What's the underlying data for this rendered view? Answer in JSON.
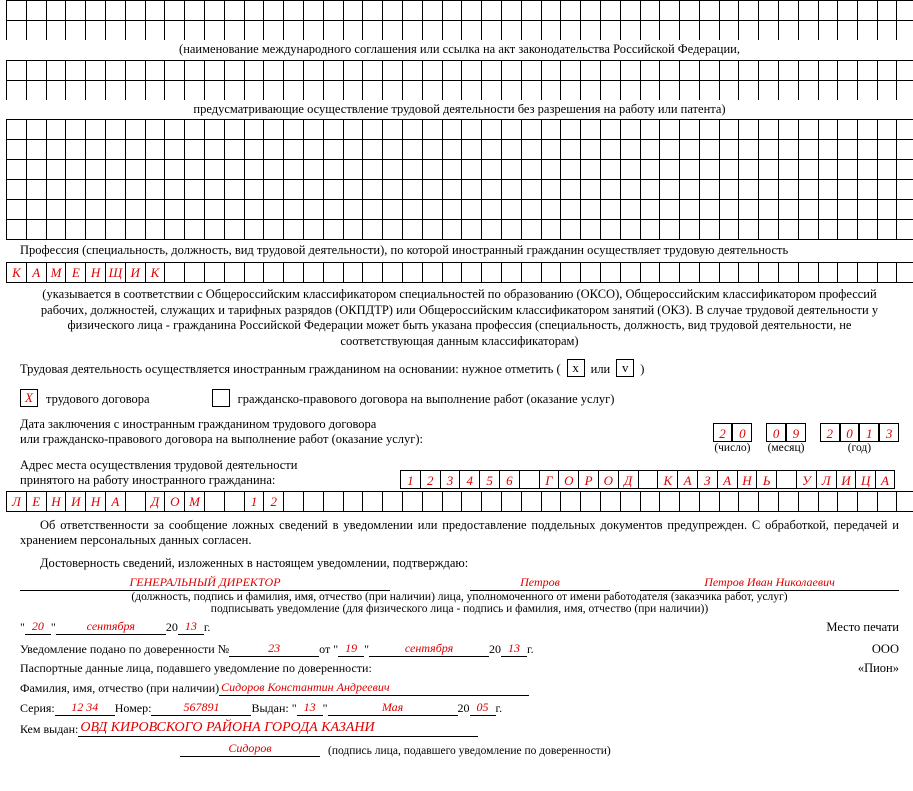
{
  "cell_count": 45,
  "note1": "(наименование международного соглашения или ссылка на акт законодательства Российской Федерации,",
  "note2": "предусматривающие осуществление трудовой деятельности без разрешения на работу или патента)",
  "profession_label": "Профессия (специальность, должность, вид трудовой деятельности), по которой иностранный гражданин осуществляет трудовую деятельность",
  "profession_chars": [
    "К",
    "А",
    "М",
    "Е",
    "Н",
    "Щ",
    "И",
    "К"
  ],
  "profession_note": "(указывается в соответствии с Общероссийским классификатором специальностей по образованию (ОКСО), Общероссийским классификатором профессий рабочих, должностей, служащих и тарифных разрядов (ОКПДТР) или Общероссийским классификатором занятий (ОКЗ). В случае трудовой деятельности у физического лица - гражданина Российской Федерации может быть указана профессия (специальность, должность, вид трудовой деятельности, не соответствующая данным классификаторам)",
  "basis_line": {
    "l1": "Трудовая деятельность осуществляется иностранным гражданином на основании: нужное отметить (",
    "x": "x",
    "ili": " или ",
    "v": "v",
    "l2": " )"
  },
  "contract_line": {
    "trud_mark": "Х",
    "trud_label": "трудового договора",
    "gpd_label": "гражданско-правового договора на выполнение работ (оказание услуг)"
  },
  "date_label1": "Дата заключения с иностранным гражданином трудового договора",
  "date_label2": "или гражданско-правового договора на выполнение работ (оказание услуг):",
  "date": {
    "dd": [
      "2",
      "0"
    ],
    "mm": [
      "0",
      "9"
    ],
    "yy": [
      "2",
      "0",
      "1",
      "3"
    ],
    "c1": "(число)",
    "c2": "(месяц)",
    "c3": "(год)"
  },
  "addr_label1": "Адрес места осуществления трудовой деятельности",
  "addr_label2": "принятого на работу иностранного гражданина:",
  "addr_row1": [
    "1",
    "2",
    "3",
    "4",
    "5",
    "6",
    "",
    "Г",
    "О",
    "Р",
    "О",
    "Д",
    "",
    "К",
    "А",
    "З",
    "А",
    "Н",
    "Ь",
    "",
    "У",
    "Л",
    "И",
    "Ц",
    "А"
  ],
  "addr_row2": [
    "Л",
    "Е",
    "Н",
    "И",
    "Н",
    "А",
    "",
    "Д",
    "О",
    "М",
    "",
    "",
    "1",
    "2"
  ],
  "resp_text": "Об ответственности за сообщение ложных сведений в уведомлении или предоставление поддельных документов предупрежден. С обработкой, передачей и хранением персональных данных согласен.",
  "confirm_text": "Достоверность сведений, изложенных в настоящем уведомлении, подтверждаю:",
  "sig": {
    "position": "ГЕНЕРАЛЬНЫЙ ДИРЕКТОР",
    "signature": "Петров",
    "fio": "Петров Иван Николаевич",
    "caption1": "(должность, подпись и фамилия, имя, отчество (при наличии) лица, уполномоченного от имени работодателя (заказчика работ, услуг)",
    "caption2": "подписывать уведомление (для физического лица - подпись и фамилия, имя, отчество (при наличии))"
  },
  "dateline": {
    "d": "20",
    "m": "сентября",
    "y": "13",
    "g": " г."
  },
  "seal": "Место печати",
  "org1": "ООО",
  "org2": "«Пион»",
  "dov": {
    "pre": "Уведомление подано по доверенности №",
    "num": "23",
    "ot": " от \"",
    "d": "19",
    "q": "\" ",
    "m": "сентября",
    "y": "13",
    "g": " г."
  },
  "passport_title": "Паспортные данные лица, подавшего уведомление по доверенности:",
  "fio_line": {
    "pre": "Фамилия, имя, отчество (при наличии) ",
    "val": "Сидоров Константин Андреевич"
  },
  "pass_line": {
    "ser": "Серия: ",
    "sv": "12 34",
    "num": " Номер: ",
    "nv": "567891",
    "vyd": " Выдан: \"",
    "d": "13",
    "q": "\" ",
    "m": "Мая",
    "y": "05",
    "g": " г."
  },
  "issued": {
    "pre": "Кем выдан: ",
    "val": "ОВД КИРОВСКОГО РАЙОНА ГОРОДА КАЗАНИ"
  },
  "finalsig": {
    "val": "Сидоров",
    "cap": "(подпись лица, подавшего уведомление по доверенности)"
  }
}
